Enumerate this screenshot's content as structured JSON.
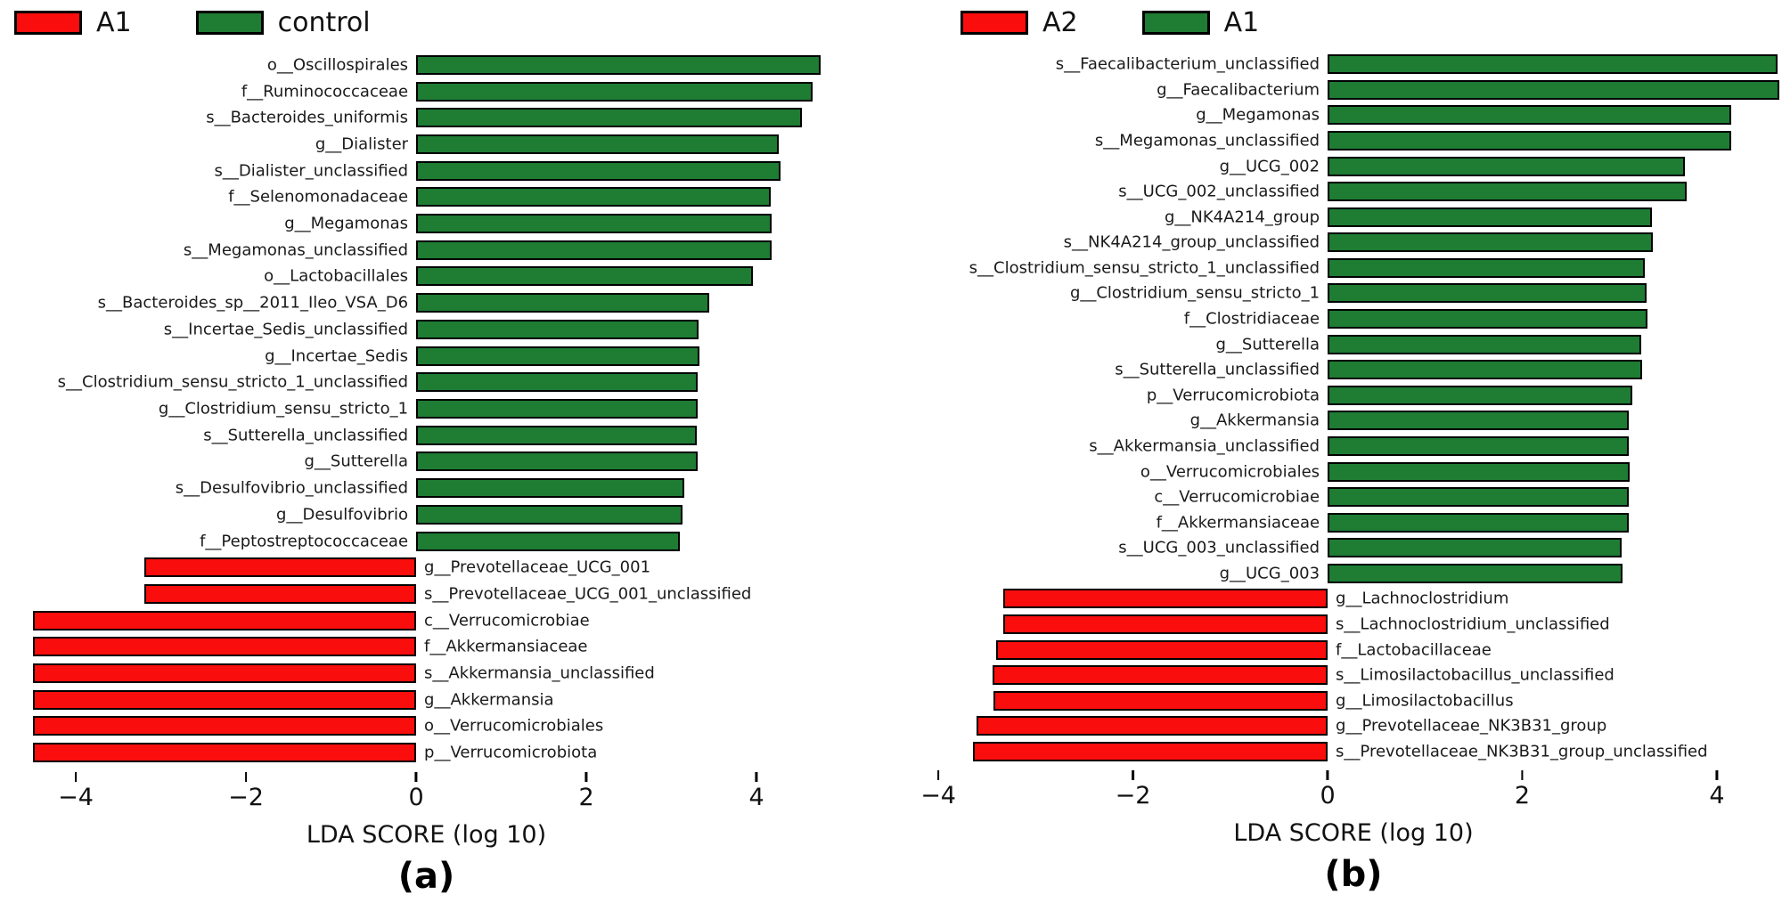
{
  "page": {
    "background": "#ffffff"
  },
  "chart_data": [
    {
      "type": "bar",
      "orientation": "horizontal",
      "caption": "(a)",
      "xlabel": "LDA SCORE (log 10)",
      "negative_color": "#f90d0d",
      "positive_color": "#1e7c33",
      "legend": [
        {
          "label": "A1",
          "color": "#f90d0d",
          "side": "negative"
        },
        {
          "label": "control",
          "color": "#1e7c33",
          "side": "positive"
        }
      ],
      "axis": {
        "xmin": -4.66,
        "xmax": 4.9,
        "grid": false,
        "ticks": [
          {
            "value": -4,
            "label": "−4"
          },
          {
            "value": -2,
            "label": "−2"
          },
          {
            "value": 0,
            "label": "0"
          },
          {
            "value": 2,
            "label": "2"
          },
          {
            "value": 4,
            "label": "4"
          }
        ]
      },
      "bars": [
        {
          "label": "o__Oscillospirales",
          "value": 4.75
        },
        {
          "label": "f__Ruminococcaceae",
          "value": 4.66
        },
        {
          "label": "s__Bacteroides_uniformis",
          "value": 4.53
        },
        {
          "label": "g__Dialister",
          "value": 4.26
        },
        {
          "label": "s__Dialister_unclassified",
          "value": 4.28
        },
        {
          "label": "f__Selenomonadaceae",
          "value": 4.17
        },
        {
          "label": "g__Megamonas",
          "value": 4.18
        },
        {
          "label": "s__Megamonas_unclassified",
          "value": 4.18
        },
        {
          "label": "o__Lactobacillales",
          "value": 3.96
        },
        {
          "label": "s__Bacteroides_sp__2011_Ileo_VSA_D6",
          "value": 3.44
        },
        {
          "label": "s__Incertae_Sedis_unclassified",
          "value": 3.32
        },
        {
          "label": "g__Incertae_Sedis",
          "value": 3.33
        },
        {
          "label": "s__Clostridium_sensu_stricto_1_unclassified",
          "value": 3.31
        },
        {
          "label": "g__Clostridium_sensu_stricto_1",
          "value": 3.31
        },
        {
          "label": "s__Sutterella_unclassified",
          "value": 3.3
        },
        {
          "label": "g__Sutterella",
          "value": 3.31
        },
        {
          "label": "s__Desulfovibrio_unclassified",
          "value": 3.15
        },
        {
          "label": "g__Desulfovibrio",
          "value": 3.13
        },
        {
          "label": "f__Peptostreptococcaceae",
          "value": 3.1
        },
        {
          "label": "g__Prevotellaceae_UCG_001",
          "value": -3.19
        },
        {
          "label": "s__Prevotellaceae_UCG_001_unclassified",
          "value": -3.19
        },
        {
          "label": "c__Verrucomicrobiae",
          "value": -4.5
        },
        {
          "label": "f__Akkermansiaceae",
          "value": -4.5
        },
        {
          "label": "s__Akkermansia_unclassified",
          "value": -4.5
        },
        {
          "label": "g__Akkermansia",
          "value": -4.5
        },
        {
          "label": "o__Verrucomicrobiales",
          "value": -4.5
        },
        {
          "label": "p__Verrucomicrobiota",
          "value": -4.5
        }
      ]
    },
    {
      "type": "bar",
      "orientation": "horizontal",
      "caption": "(b)",
      "xlabel": "LDA SCORE (log 10)",
      "negative_color": "#f90d0d",
      "positive_color": "#1e7c33",
      "legend": [
        {
          "label": "A2",
          "color": "#f90d0d",
          "side": "negative"
        },
        {
          "label": "A1",
          "color": "#1e7c33",
          "side": "positive"
        }
      ],
      "axis": {
        "xmin": -4.12,
        "xmax": 4.65,
        "grid": false,
        "ticks": [
          {
            "value": -4,
            "label": "−4"
          },
          {
            "value": -2,
            "label": "−2"
          },
          {
            "value": 0,
            "label": "0"
          },
          {
            "value": 2,
            "label": "2"
          },
          {
            "value": 4,
            "label": "4"
          }
        ]
      },
      "bars": [
        {
          "label": "s__Faecalibacterium_unclassified",
          "value": 4.62
        },
        {
          "label": "g__Faecalibacterium",
          "value": 4.64
        },
        {
          "label": "g__Megamonas",
          "value": 4.15
        },
        {
          "label": "s__Megamonas_unclassified",
          "value": 4.15
        },
        {
          "label": "g__UCG_002",
          "value": 3.67
        },
        {
          "label": "s__UCG_002_unclassified",
          "value": 3.69
        },
        {
          "label": "g__NK4A214_group",
          "value": 3.33
        },
        {
          "label": "s__NK4A214_group_unclassified",
          "value": 3.34
        },
        {
          "label": "s__Clostridium_sensu_stricto_1_unclassified",
          "value": 3.26
        },
        {
          "label": "g__Clostridium_sensu_stricto_1",
          "value": 3.28
        },
        {
          "label": "f__Clostridiaceae",
          "value": 3.29
        },
        {
          "label": "g__Sutterella",
          "value": 3.22
        },
        {
          "label": "s__Sutterella_unclassified",
          "value": 3.23
        },
        {
          "label": "p__Verrucomicrobiota",
          "value": 3.13
        },
        {
          "label": "g__Akkermansia",
          "value": 3.09
        },
        {
          "label": "s__Akkermansia_unclassified",
          "value": 3.09
        },
        {
          "label": "o__Verrucomicrobiales",
          "value": 3.1
        },
        {
          "label": "c__Verrucomicrobiae",
          "value": 3.09
        },
        {
          "label": "f__Akkermansiaceae",
          "value": 3.09
        },
        {
          "label": "s__UCG_003_unclassified",
          "value": 3.02
        },
        {
          "label": "g__UCG_003",
          "value": 3.03
        },
        {
          "label": "g__Lachnoclostridium",
          "value": -3.33
        },
        {
          "label": "s__Lachnoclostridium_unclassified",
          "value": -3.33
        },
        {
          "label": "f__Lactobacillaceae",
          "value": -3.41
        },
        {
          "label": "s__Limosilactobacillus_unclassified",
          "value": -3.44
        },
        {
          "label": "g__Limosilactobacillus",
          "value": -3.43
        },
        {
          "label": "g__Prevotellaceae_NK3B31_group",
          "value": -3.61
        },
        {
          "label": "s__Prevotellaceae_NK3B31_group_unclassified",
          "value": -3.64
        }
      ]
    }
  ]
}
